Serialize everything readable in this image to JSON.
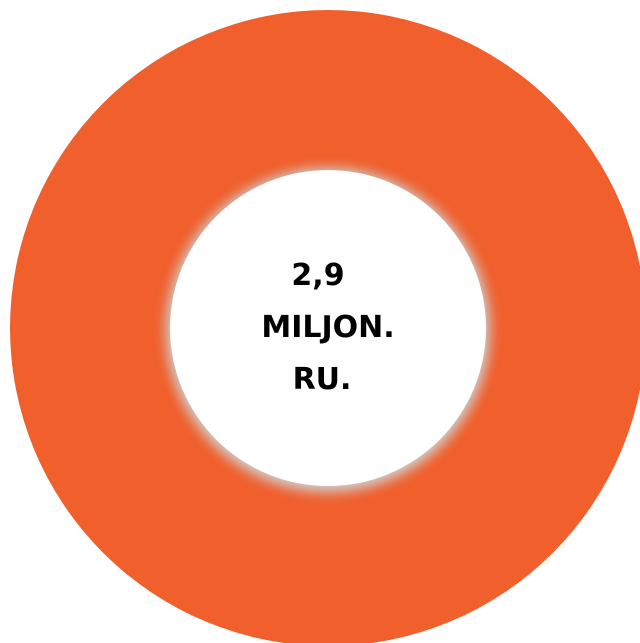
{
  "chart_data": {
    "type": "pie",
    "variant": "donut",
    "slices": [
      {
        "value": 100,
        "color": "#F05F2C"
      }
    ],
    "center_text": [
      "2,9",
      "MILJON.",
      "RU."
    ],
    "legend": "none",
    "background": "#FFFFFF"
  }
}
